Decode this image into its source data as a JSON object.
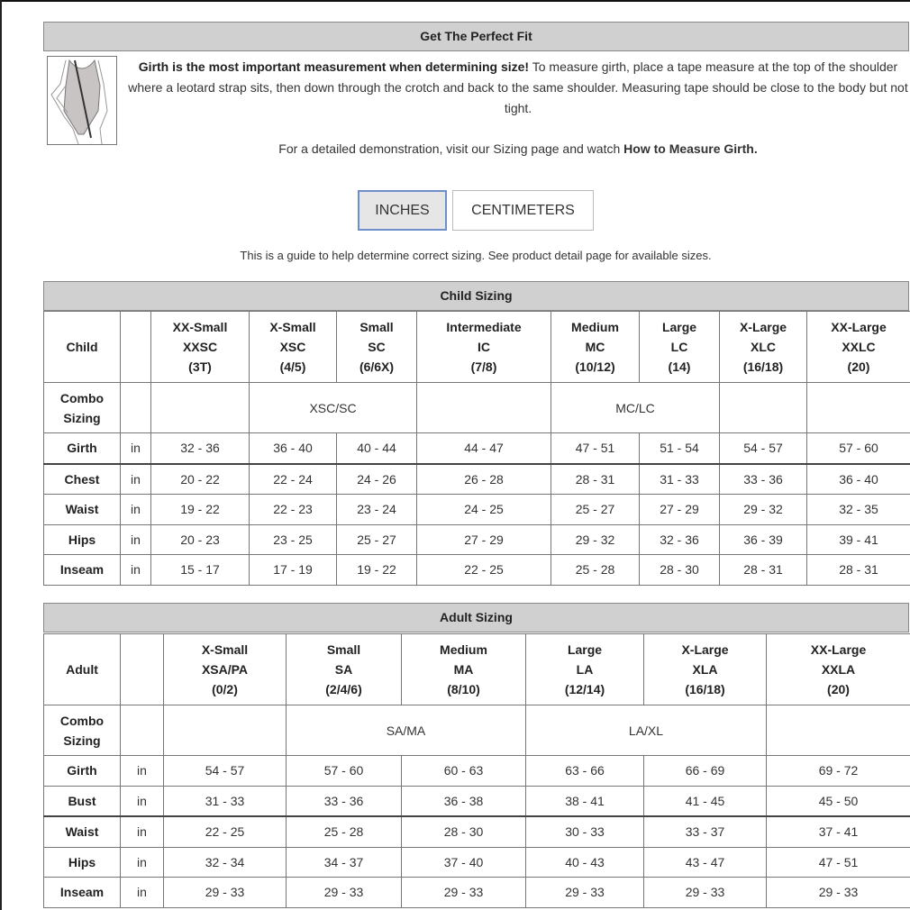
{
  "fit": {
    "title": "Get The Perfect Fit",
    "intro_bold": "Girth is the most important measurement when determining size!",
    "intro_rest": " To measure girth, place a tape measure at the top of the shoulder where a leotard strap sits, then down through the crotch and back to the same shoulder. Measuring tape should be close to the body but not tight.",
    "demo_text": "For a detailed demonstration, visit our Sizing page and watch ",
    "demo_link": "How to Measure Girth."
  },
  "units": {
    "inches": "INCHES",
    "centimeters": "CENTIMETERS",
    "selected": "INCHES"
  },
  "guide": "This is a guide to help determine correct sizing. See product detail page for available sizes.",
  "child": {
    "title": "Child Sizing",
    "corner": "Child",
    "sizes": [
      [
        "XX-Small",
        "XXSC",
        "(3T)"
      ],
      [
        "X-Small",
        "XSC",
        "(4/5)"
      ],
      [
        "Small",
        "SC",
        "(6/6X)"
      ],
      [
        "Intermediate",
        "IC",
        "(7/8)"
      ],
      [
        "Medium",
        "MC",
        "(10/12)"
      ],
      [
        "Large",
        "LC",
        "(14)"
      ],
      [
        "X-Large",
        "XLC",
        "(16/18)"
      ],
      [
        "XX-Large",
        "XXLC",
        "(20)"
      ]
    ],
    "combo_label": "Combo Sizing",
    "combo": [
      {
        "text": "",
        "span": 1
      },
      {
        "text": "XSC/SC",
        "span": 2
      },
      {
        "text": "",
        "span": 1
      },
      {
        "text": "MC/LC",
        "span": 2
      },
      {
        "text": "",
        "span": 1
      },
      {
        "text": "",
        "span": 1
      }
    ],
    "unit": "in",
    "rows": [
      {
        "label": "Girth",
        "values": [
          "32 - 36",
          "36 - 40",
          "40 - 44",
          "44 - 47",
          "47 - 51",
          "51 - 54",
          "54 - 57",
          "57 - 60"
        ]
      },
      {
        "label": "Chest",
        "values": [
          "20 - 22",
          "22 - 24",
          "24 - 26",
          "26 - 28",
          "28 - 31",
          "31 - 33",
          "33 - 36",
          "36 - 40"
        ]
      },
      {
        "label": "Waist",
        "values": [
          "19 - 22",
          "22 - 23",
          "23 - 24",
          "24 - 25",
          "25 - 27",
          "27 - 29",
          "29 - 32",
          "32 - 35"
        ]
      },
      {
        "label": "Hips",
        "values": [
          "20 - 23",
          "23 - 25",
          "25 - 27",
          "27 - 29",
          "29 - 32",
          "32 - 36",
          "36 - 39",
          "39 - 41"
        ]
      },
      {
        "label": "Inseam",
        "values": [
          "15 - 17",
          "17 - 19",
          "19 - 22",
          "22 - 25",
          "25 - 28",
          "28 - 30",
          "28 - 31",
          "28 - 31"
        ]
      }
    ]
  },
  "adult": {
    "title": "Adult Sizing",
    "corner": "Adult",
    "sizes": [
      [
        "X-Small",
        "XSA/PA",
        "(0/2)"
      ],
      [
        "Small",
        "SA",
        "(2/4/6)"
      ],
      [
        "Medium",
        "MA",
        "(8/10)"
      ],
      [
        "Large",
        "LA",
        "(12/14)"
      ],
      [
        "X-Large",
        "XLA",
        "(16/18)"
      ],
      [
        "XX-Large",
        "XXLA",
        "(20)"
      ]
    ],
    "combo_label": "Combo Sizing",
    "combo": [
      {
        "text": "",
        "span": 1
      },
      {
        "text": "SA/MA",
        "span": 2
      },
      {
        "text": "LA/XL",
        "span": 2
      },
      {
        "text": "",
        "span": 1
      }
    ],
    "unit": "in",
    "rows": [
      {
        "label": "Girth",
        "values": [
          "54 - 57",
          "57 - 60",
          "60 - 63",
          "63 - 66",
          "66 - 69",
          "69 - 72"
        ]
      },
      {
        "label": "Bust",
        "values": [
          "31 - 33",
          "33 - 36",
          "36 - 38",
          "38 - 41",
          "41 - 45",
          "45 - 50"
        ]
      },
      {
        "label": "Waist",
        "values": [
          "22 - 25",
          "25 - 28",
          "28 - 30",
          "30 - 33",
          "33 - 37",
          "37 - 41"
        ]
      },
      {
        "label": "Hips",
        "values": [
          "32 - 34",
          "34 - 37",
          "37 - 40",
          "40 - 43",
          "43 - 47",
          "47 - 51"
        ]
      },
      {
        "label": "Inseam",
        "values": [
          "29 - 33",
          "29 - 33",
          "29 - 33",
          "29 - 33",
          "29 - 33",
          "29 - 33"
        ]
      }
    ]
  }
}
